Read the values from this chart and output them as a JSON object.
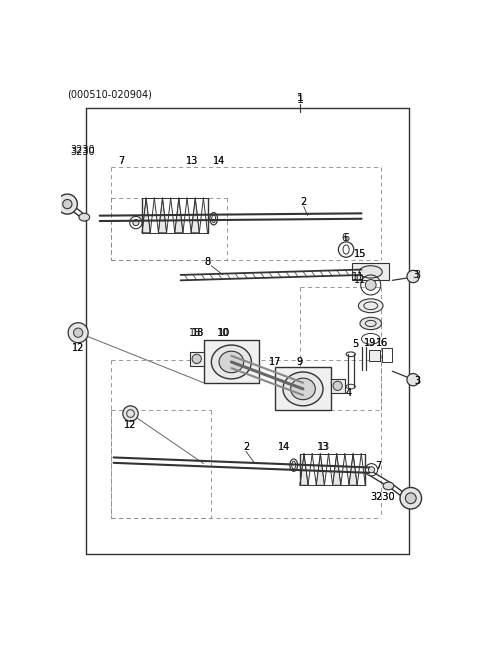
{
  "bg_color": "#ffffff",
  "line_color": "#333333",
  "gray_light": "#cccccc",
  "gray_mid": "#999999",
  "gray_dark": "#555555",
  "fig_width": 4.8,
  "fig_height": 6.55,
  "dpi": 100
}
